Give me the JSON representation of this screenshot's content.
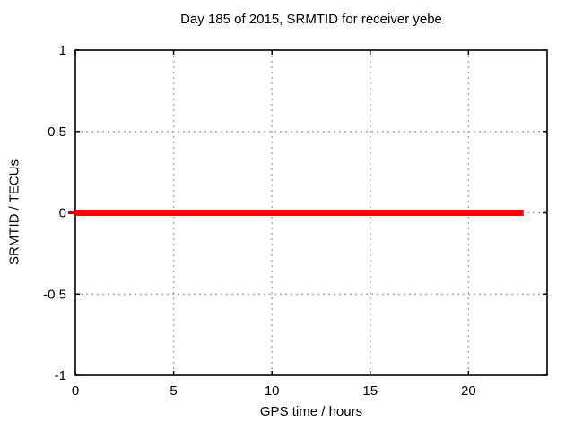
{
  "window": {
    "background": "#ffffff"
  },
  "chart_data": {
    "type": "line",
    "title": "Day 185 of 2015, SRMTID for receiver yebe",
    "xlabel": "GPS time / hours",
    "ylabel": "SRMTID / TECUs",
    "xlim": [
      0,
      24
    ],
    "ylim": [
      -1,
      1
    ],
    "xticks": [
      0,
      5,
      10,
      15,
      20
    ],
    "yticks": [
      1,
      0.5,
      0,
      -0.5,
      -1
    ],
    "grid": true,
    "grid_style": "dashed",
    "tick_style": "inward-mirrored",
    "legend": "none",
    "series": [
      {
        "name": "SRMTID",
        "color": "#ff0000",
        "line_width": 7,
        "x": [
          0,
          22.8
        ],
        "y": [
          0,
          0
        ]
      }
    ],
    "colors": {
      "grid": "#a8a8a8",
      "border": "#000000",
      "text": "#000000",
      "background": "#ffffff",
      "series_start_cap": "#bb0000"
    }
  }
}
